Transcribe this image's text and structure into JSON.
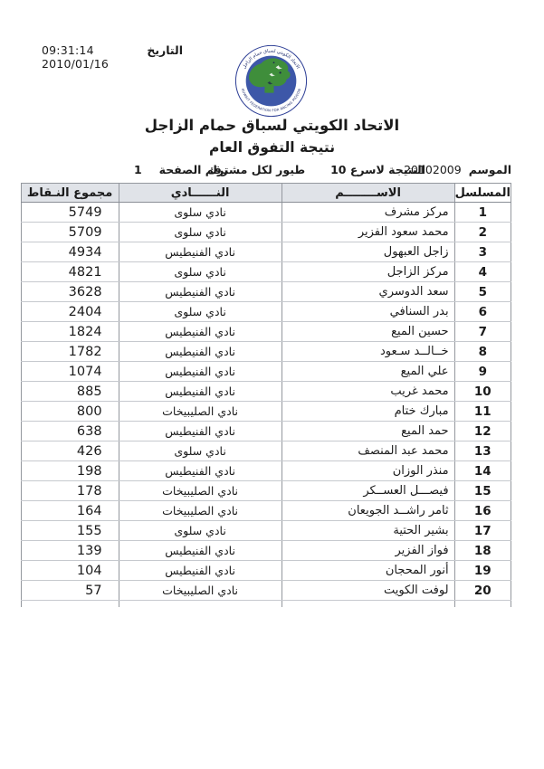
{
  "header": {
    "date_label": "التاريخ",
    "date_value": "09:31:14 2010/01/16",
    "title": "الاتحاد الكويتي لسباق حمام الزاجل",
    "subtitle": "نتيجة التفوق العام"
  },
  "logo": {
    "arc_text_top": "الاتحاد الكويتي لسباق حمام الزاجل",
    "arc_text_bottom": "KUWAIT FEDERATION FOR RACING PIGEON"
  },
  "meta": {
    "season_label": "الموسم",
    "season_value": "20102009",
    "result_note_1": "النتيجة لاسرع 10",
    "result_note_2": "طيور لكل مشترك",
    "page_number_label": "رقم الصفحة",
    "page_number": "1"
  },
  "table": {
    "headers": {
      "serial": "المسلسل",
      "name": "الاســــــــم",
      "club": "النــــــادي",
      "points": "مجموع النـقاط"
    },
    "rows": [
      {
        "serial": "1",
        "name": "مركز مشرف",
        "club": "نادي سلوى",
        "points": "5749"
      },
      {
        "serial": "2",
        "name": "محمد سعود الفزير",
        "club": "نادي سلوى",
        "points": "5709"
      },
      {
        "serial": "3",
        "name": "زاجل العبهول",
        "club": "نادي الفنيطيس",
        "points": "4934"
      },
      {
        "serial": "4",
        "name": "مركز الزاجل",
        "club": "نادي سلوى",
        "points": "4821"
      },
      {
        "serial": "5",
        "name": "سعد الدوسري",
        "club": "نادي الفنيطيس",
        "points": "3628"
      },
      {
        "serial": "6",
        "name": "بدر السنافي",
        "club": "نادي سلوى",
        "points": "2404"
      },
      {
        "serial": "7",
        "name": "حسين الميع",
        "club": "نادي الفنيطيس",
        "points": "1824"
      },
      {
        "serial": "8",
        "name": "خــالــد سـعود",
        "club": "نادي الفنيطيس",
        "points": "1782"
      },
      {
        "serial": "9",
        "name": "علي الميع",
        "club": "نادي الفنيطيس",
        "points": "1074"
      },
      {
        "serial": "10",
        "name": "محمد غريب",
        "club": "نادي الفنيطيس",
        "points": "885"
      },
      {
        "serial": "11",
        "name": "مبارك ختام",
        "club": "نادي الصليبيخات",
        "points": "800"
      },
      {
        "serial": "12",
        "name": "حمد الميع",
        "club": "نادي الفنيطيس",
        "points": "638"
      },
      {
        "serial": "13",
        "name": "محمد عبد المنصف",
        "club": "نادي سلوى",
        "points": "426"
      },
      {
        "serial": "14",
        "name": "منذر الوزان",
        "club": "نادي الفنيطيس",
        "points": "198"
      },
      {
        "serial": "15",
        "name": "فيصـــل العســكر",
        "club": "نادي الصليبيخات",
        "points": "178"
      },
      {
        "serial": "16",
        "name": "ثامر راشــد الجويعان",
        "club": "نادي الصليبيخات",
        "points": "164"
      },
      {
        "serial": "17",
        "name": "بشير الحتية",
        "club": "نادي سلوى",
        "points": "155"
      },
      {
        "serial": "18",
        "name": "فواز الفزير",
        "club": "نادي الفنيطيس",
        "points": "139"
      },
      {
        "serial": "19",
        "name": "أنور المحجان",
        "club": "نادي الفنيطيس",
        "points": "104"
      },
      {
        "serial": "20",
        "name": "لوفت الكويت",
        "club": "نادي الصليبيخات",
        "points": "57"
      }
    ]
  },
  "colors": {
    "header_bg": "#e0e3e8",
    "border_vertical": "#94989e",
    "border_horizontal": "#c6c9ce",
    "logo_ring": "#2e3f96",
    "logo_inner": "#3d57a8",
    "logo_bird_green": "#3f8e3b",
    "text": "#1b1b1b"
  }
}
